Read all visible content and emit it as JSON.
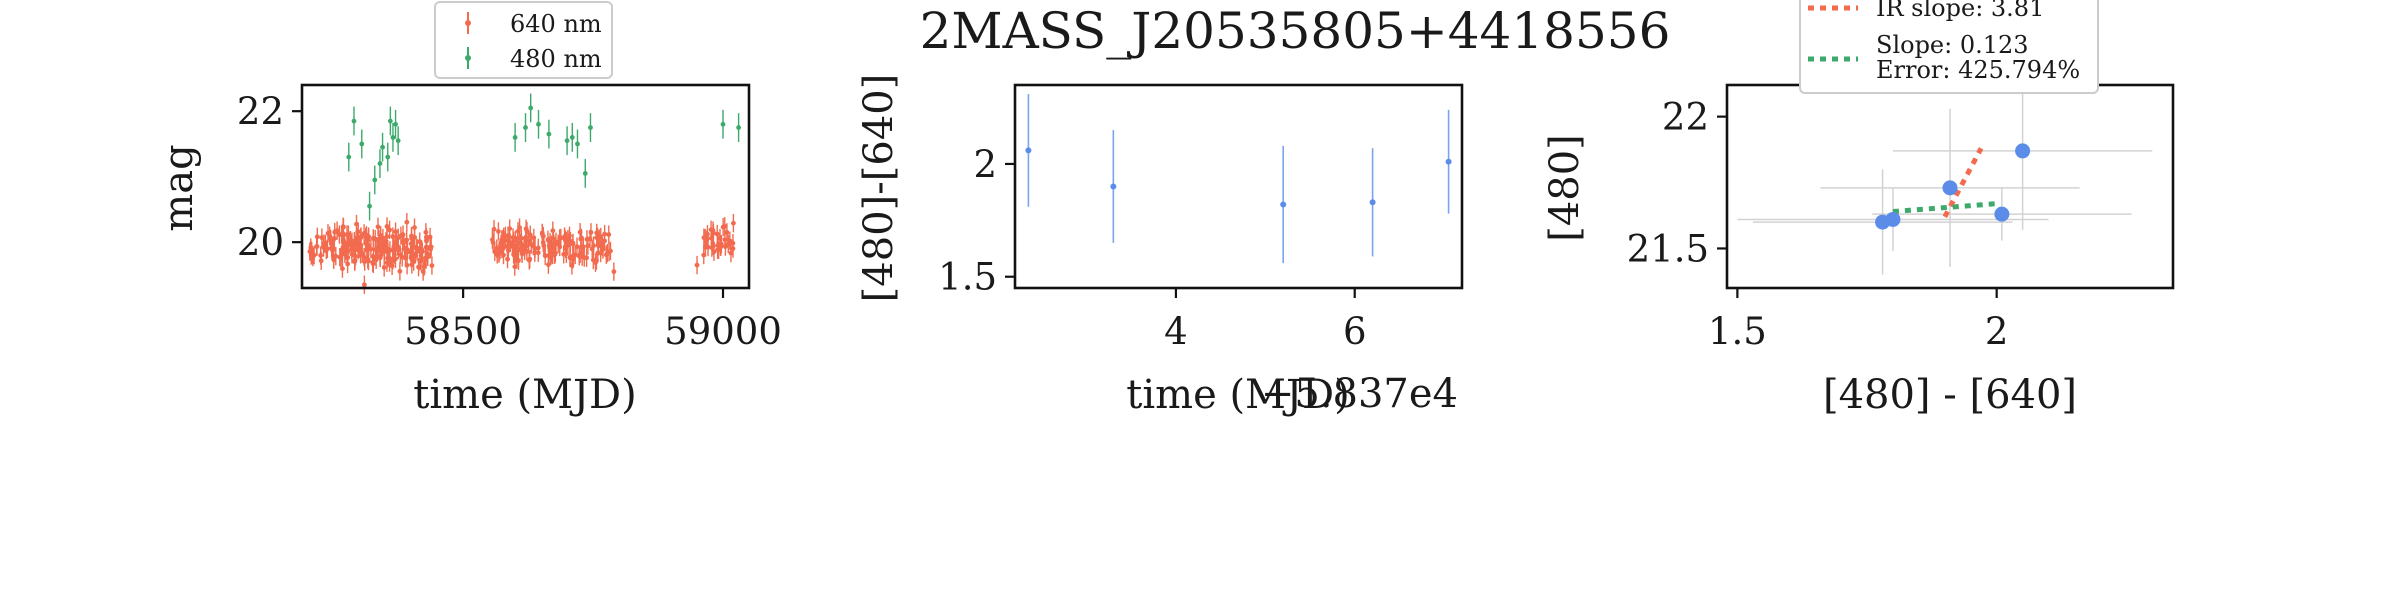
{
  "figure": {
    "title": "2MASS_J20535805+4418556"
  },
  "colors": {
    "red": "#f26b4f",
    "green": "#3daa6b",
    "blue": "#5b8de8",
    "gray": "#d2d2d2"
  },
  "chart_data": [
    {
      "id": "lightcurve",
      "type": "scatter",
      "xlabel": "time (MJD)",
      "ylabel": "mag",
      "xlim": [
        58190,
        59050
      ],
      "ylim": [
        22.4,
        19.3
      ],
      "xticks": [
        58500,
        59000
      ],
      "yticks": [
        20,
        22
      ],
      "legend": {
        "placement": "top",
        "entries": [
          "640 nm",
          "480 nm"
        ]
      },
      "series": [
        {
          "name": "640 nm",
          "color_key": "red",
          "clusters": [
            {
              "x_start": 58205,
              "x_end": 58440,
              "count": 210,
              "y_center": 19.9,
              "y_spread": 0.35
            },
            {
              "x_start": 58555,
              "x_end": 58785,
              "count": 160,
              "y_center": 19.95,
              "y_spread": 0.3
            },
            {
              "x_start": 58955,
              "x_end": 59020,
              "count": 35,
              "y_center": 20.0,
              "y_spread": 0.25
            }
          ],
          "points": [
            [
              58310,
              19.35
            ],
            [
              58790,
              19.55
            ],
            [
              58950,
              19.65
            ]
          ]
        },
        {
          "name": "480 nm",
          "color_key": "green",
          "points": [
            [
              58280,
              21.3
            ],
            [
              58290,
              21.85
            ],
            [
              58305,
              21.5
            ],
            [
              58320,
              20.55
            ],
            [
              58330,
              20.95
            ],
            [
              58340,
              21.2
            ],
            [
              58345,
              21.45
            ],
            [
              58355,
              21.3
            ],
            [
              58360,
              21.85
            ],
            [
              58365,
              21.6
            ],
            [
              58370,
              21.8
            ],
            [
              58375,
              21.55
            ],
            [
              58600,
              21.6
            ],
            [
              58620,
              21.75
            ],
            [
              58630,
              22.05
            ],
            [
              58645,
              21.8
            ],
            [
              58665,
              21.65
            ],
            [
              58700,
              21.55
            ],
            [
              58710,
              21.6
            ],
            [
              58720,
              21.5
            ],
            [
              58735,
              21.05
            ],
            [
              58745,
              21.75
            ],
            [
              59000,
              21.8
            ],
            [
              59030,
              21.75
            ]
          ]
        }
      ]
    },
    {
      "id": "color-curve",
      "type": "scatter",
      "xlabel": "time (MJD)",
      "ylabel": "[480]-[640]",
      "offset_label": "+5.837e4",
      "xlim": [
        2.2,
        7.2
      ],
      "ylim": [
        2.35,
        1.45
      ],
      "xticks": [
        4,
        6
      ],
      "yticks": [
        1.5,
        2.0
      ],
      "series": [
        {
          "color_key": "blue",
          "points": [
            {
              "x": 2.35,
              "y": 2.06,
              "err": 0.25
            },
            {
              "x": 3.3,
              "y": 1.9,
              "err": 0.25
            },
            {
              "x": 5.2,
              "y": 1.82,
              "err": 0.26
            },
            {
              "x": 6.2,
              "y": 1.83,
              "err": 0.24
            },
            {
              "x": 7.05,
              "y": 2.01,
              "err": 0.23
            }
          ]
        }
      ]
    },
    {
      "id": "color-magnitude",
      "type": "scatter",
      "xlabel": "[480] - [640]",
      "ylabel": "[480]",
      "xlim": [
        1.48,
        2.34
      ],
      "ylim": [
        22.12,
        21.35
      ],
      "xticks": [
        1.5,
        2.0
      ],
      "yticks": [
        21.5,
        22.0
      ],
      "legend": {
        "placement": "top",
        "entries": [
          "IR slope: 3.81",
          "Slope: 0.123",
          "Error: 425.794%"
        ]
      },
      "series": [
        {
          "color_key": "blue",
          "points": [
            {
              "x": 1.78,
              "y": 21.6,
              "xerr": 0.25,
              "yerr": 0.2
            },
            {
              "x": 1.8,
              "y": 21.61,
              "xerr": 0.3,
              "yerr": 0.12
            },
            {
              "x": 1.91,
              "y": 21.73,
              "xerr": 0.25,
              "yerr": 0.3
            },
            {
              "x": 2.01,
              "y": 21.63,
              "xerr": 0.25,
              "yerr": 0.1
            },
            {
              "x": 2.05,
              "y": 21.87,
              "xerr": 0.25,
              "yerr": 0.3
            }
          ],
          "fit_ir": {
            "color_key": "red",
            "x1": 1.9,
            "y1": 21.62,
            "x2": 1.97,
            "y2": 21.88
          },
          "fit": {
            "color_key": "green",
            "x1": 1.8,
            "y1": 21.64,
            "x2": 2.0,
            "y2": 21.67
          }
        }
      ]
    }
  ]
}
